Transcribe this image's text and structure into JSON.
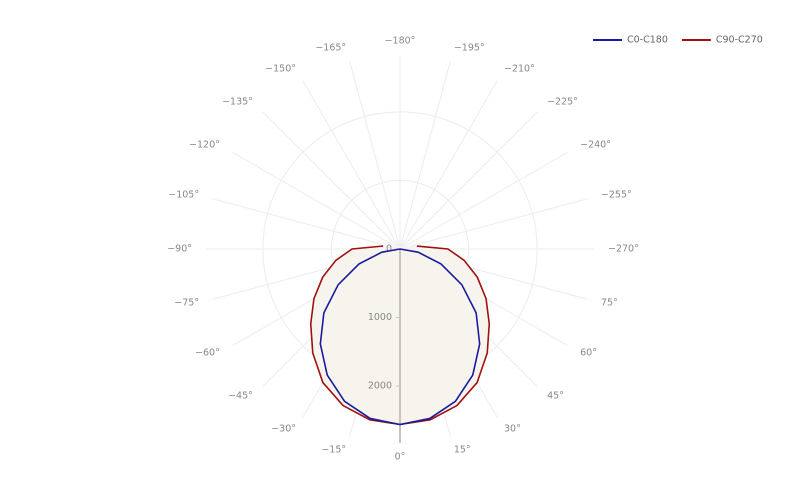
{
  "chart_data": {
    "type": "polar",
    "theta": [
      -100,
      -90,
      -80,
      -70,
      -60,
      -50,
      -40,
      -30,
      -20,
      -10,
      0,
      10,
      20,
      30,
      40,
      50,
      60,
      70,
      80,
      90,
      100
    ],
    "series": [
      {
        "name": "C0-C180",
        "color": "#1a1aa0",
        "values": [
          0,
          0,
          268,
          636,
          1041,
          1450,
          1808,
          2123,
          2365,
          2510,
          2560,
          2510,
          2365,
          2123,
          1808,
          1450,
          1041,
          636,
          268,
          0,
          0
        ]
      },
      {
        "name": "C90-C270",
        "color": "#a01010",
        "values": [
          250,
          700,
          950,
          1200,
          1450,
          1700,
          1980,
          2250,
          2430,
          2530,
          2560,
          2530,
          2430,
          2250,
          1980,
          1700,
          1450,
          1200,
          950,
          700,
          250
        ]
      }
    ],
    "rlim": [
      0,
      2830
    ],
    "rticks": [
      0,
      1000,
      2000
    ],
    "thetaticks": [
      {
        "value": 0,
        "label": "0°"
      },
      {
        "value": 15,
        "label": "15°"
      },
      {
        "value": 30,
        "label": "30°"
      },
      {
        "value": 45,
        "label": "45°"
      },
      {
        "value": 60,
        "label": "60°"
      },
      {
        "value": 75,
        "label": "75°"
      },
      {
        "value": 90,
        "label": "−270°"
      },
      {
        "value": 105,
        "label": "−255°"
      },
      {
        "value": 120,
        "label": "−240°"
      },
      {
        "value": 135,
        "label": "−225°"
      },
      {
        "value": 150,
        "label": "−210°"
      },
      {
        "value": 165,
        "label": "−195°"
      },
      {
        "value": 180,
        "label": "−180°"
      },
      {
        "value": 195,
        "label": "−165°"
      },
      {
        "value": 210,
        "label": "−150°"
      },
      {
        "value": 225,
        "label": "−135°"
      },
      {
        "value": 240,
        "label": "−120°"
      },
      {
        "value": 255,
        "label": "−105°"
      },
      {
        "value": 270,
        "label": "−90°"
      },
      {
        "value": 285,
        "label": "−75°"
      },
      {
        "value": 300,
        "label": "−60°"
      },
      {
        "value": 315,
        "label": "−45°"
      },
      {
        "value": 330,
        "label": "−30°"
      },
      {
        "value": 345,
        "label": "−15°"
      }
    ],
    "legend": "top-right",
    "grid": true
  }
}
